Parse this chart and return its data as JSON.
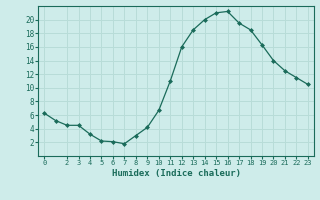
{
  "x": [
    0,
    1,
    2,
    3,
    4,
    5,
    6,
    7,
    8,
    9,
    10,
    11,
    12,
    13,
    14,
    15,
    16,
    17,
    18,
    19,
    20,
    21,
    22,
    23
  ],
  "y": [
    6.3,
    5.2,
    4.5,
    4.5,
    3.2,
    2.2,
    2.1,
    1.8,
    3.0,
    4.2,
    6.7,
    11.0,
    16.0,
    18.5,
    20.0,
    21.0,
    21.2,
    19.5,
    18.5,
    16.3,
    14.0,
    12.5,
    11.5,
    10.5
  ],
  "xlabel": "Humidex (Indice chaleur)",
  "ylabel": "",
  "title": "",
  "bg_color": "#ceecea",
  "line_color": "#1a6b5a",
  "marker_color": "#1a6b5a",
  "grid_color": "#b8dcd8",
  "xlim": [
    -0.5,
    23.5
  ],
  "ylim": [
    0,
    22
  ],
  "yticks": [
    2,
    4,
    6,
    8,
    10,
    12,
    14,
    16,
    18,
    20
  ],
  "xticks": [
    0,
    2,
    3,
    4,
    5,
    6,
    7,
    8,
    9,
    10,
    11,
    12,
    13,
    14,
    15,
    16,
    17,
    18,
    19,
    20,
    21,
    22,
    23
  ]
}
